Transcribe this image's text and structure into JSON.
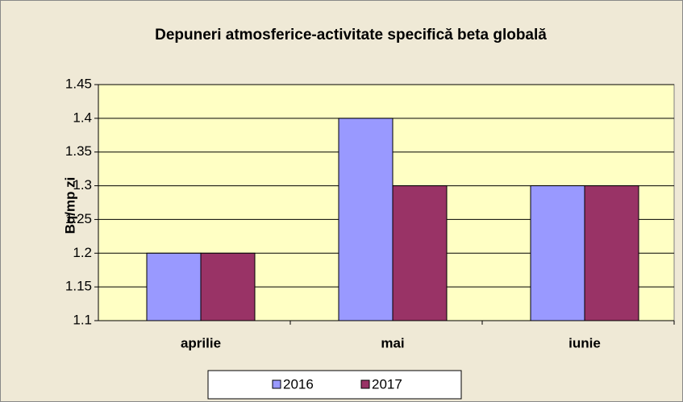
{
  "chart_data": {
    "type": "bar",
    "title": "Depuneri atmosferice-activitate specifică beta globală",
    "y_label": "Bq/mp zi",
    "categories": [
      "aprilie",
      "mai",
      "iunie"
    ],
    "series": [
      {
        "name": "2016",
        "color": "#9999ff",
        "values": [
          1.2,
          1.4,
          1.3
        ]
      },
      {
        "name": "2017",
        "color": "#993366",
        "values": [
          1.2,
          1.3,
          1.3
        ]
      }
    ],
    "ylim": [
      1.1,
      1.45
    ],
    "yticks": [
      1.1,
      1.15,
      1.2,
      1.25,
      1.3,
      1.35,
      1.4,
      1.45
    ],
    "grid": true,
    "legend": "bottom"
  }
}
